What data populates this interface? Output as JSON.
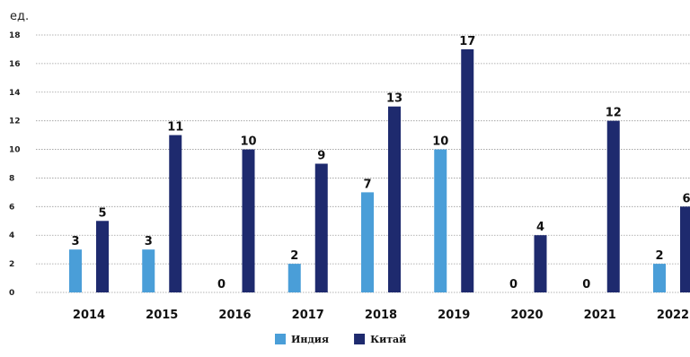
{
  "chart_data": {
    "type": "bar",
    "unit_label": "ед.",
    "categories": [
      "2014",
      "2015",
      "2016",
      "2017",
      "2018",
      "2019",
      "2020",
      "2021",
      "2022"
    ],
    "series": [
      {
        "name": "Индия",
        "color": "#4a9ed8",
        "values": [
          3,
          3,
          0,
          2,
          7,
          10,
          0,
          0,
          2
        ]
      },
      {
        "name": "Китай",
        "color": "#1e2a6e",
        "values": [
          5,
          11,
          10,
          9,
          13,
          17,
          4,
          12,
          6
        ]
      }
    ],
    "ylim": [
      0,
      18
    ],
    "yticks": [
      0,
      2,
      4,
      6,
      8,
      10,
      12,
      14,
      16,
      18
    ],
    "grid": true,
    "legend_position": "bottom-center"
  }
}
